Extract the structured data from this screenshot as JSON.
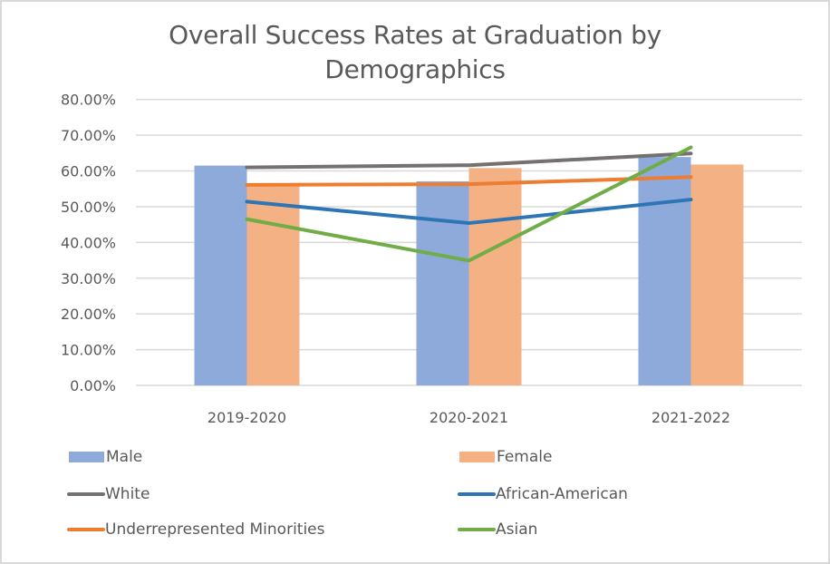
{
  "chart_data": {
    "type": "bar",
    "title": "Overall Success Rates at Graduation by Demographics",
    "title_lines": [
      "Overall Success Rates at Graduation by",
      "Demographics"
    ],
    "xlabel": "",
    "ylabel": "",
    "categories": [
      "2019-2020",
      "2020-2021",
      "2021-2022"
    ],
    "ylim": [
      0,
      80
    ],
    "yticks": [
      0,
      10,
      20,
      30,
      40,
      50,
      60,
      70,
      80
    ],
    "ytick_labels": [
      "0.00%",
      "10.00%",
      "20.00%",
      "30.00%",
      "40.00%",
      "50.00%",
      "60.00%",
      "70.00%",
      "80.00%"
    ],
    "grid": true,
    "legend_position": "bottom",
    "series": [
      {
        "name": "Male",
        "type": "bar",
        "color": "#8eaadb",
        "values": [
          61.5,
          57.1,
          63.9
        ]
      },
      {
        "name": "Female",
        "type": "bar",
        "color": "#f4b183",
        "values": [
          55.8,
          60.8,
          61.8
        ]
      },
      {
        "name": "White",
        "type": "line",
        "color": "#767171",
        "values": [
          61.0,
          61.6,
          64.9
        ]
      },
      {
        "name": "African-American",
        "type": "line",
        "color": "#2e75b6",
        "values": [
          51.4,
          45.4,
          52.0
        ]
      },
      {
        "name": "Underrepresented Minorities",
        "type": "line",
        "color": "#ed7d31",
        "values": [
          56.1,
          56.3,
          58.3
        ]
      },
      {
        "name": "Asian",
        "type": "line",
        "color": "#70ad47",
        "values": [
          46.5,
          34.9,
          66.6
        ]
      }
    ]
  }
}
